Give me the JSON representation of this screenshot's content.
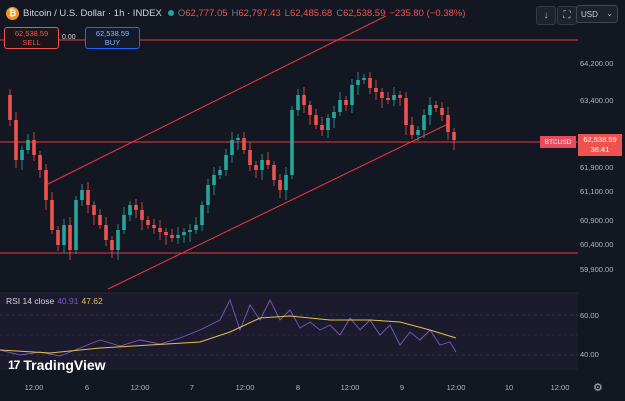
{
  "header": {
    "logo_letter": "₿",
    "symbol": "Bitcoin / U.S. Dollar · 1h · INDEX",
    "open_label": "O",
    "open": "62,777.05",
    "high_label": "H",
    "high": "62,797.43",
    "low_label": "L",
    "low": "62,485.68",
    "close_label": "C",
    "close": "62,538.59",
    "change": "−235.80 (−0.38%)"
  },
  "toolbar": {
    "down_icon": "↓",
    "expand_icon": "⛶",
    "currency": "USD",
    "currency_chevron": "⌄"
  },
  "trade": {
    "sell_price": "62,538.59",
    "sell_label": "SELL",
    "spread": "0.00",
    "buy_price": "62,538.59",
    "buy_label": "BUY"
  },
  "price_axis": [
    "64,200.00",
    "63,400.00",
    "61,900.00",
    "61,100.00",
    "60,900.00",
    "60,400.00",
    "59,900.00"
  ],
  "current_price": {
    "badge": "BTCUSD",
    "value": "62,538.59",
    "countdown": "36:41"
  },
  "rsi": {
    "label": "RSI 14 close",
    "value": "40.91",
    "ma_value": "47.62",
    "axis": [
      "60.00",
      "40.00"
    ]
  },
  "time_axis": [
    "12:00",
    "6",
    "12:00",
    "7",
    "12:00",
    "8",
    "12:00",
    "9",
    "12:00",
    "10",
    "12:00"
  ],
  "brand": {
    "icon": "17",
    "name": "TradingView"
  },
  "settings_icon": "⚙",
  "colors": {
    "up": "#26a69a",
    "down": "#ef5350",
    "line": "#f23645",
    "rsi": "#7e57c2",
    "rsi_ma": "#e0c050",
    "background": "#131722"
  }
}
